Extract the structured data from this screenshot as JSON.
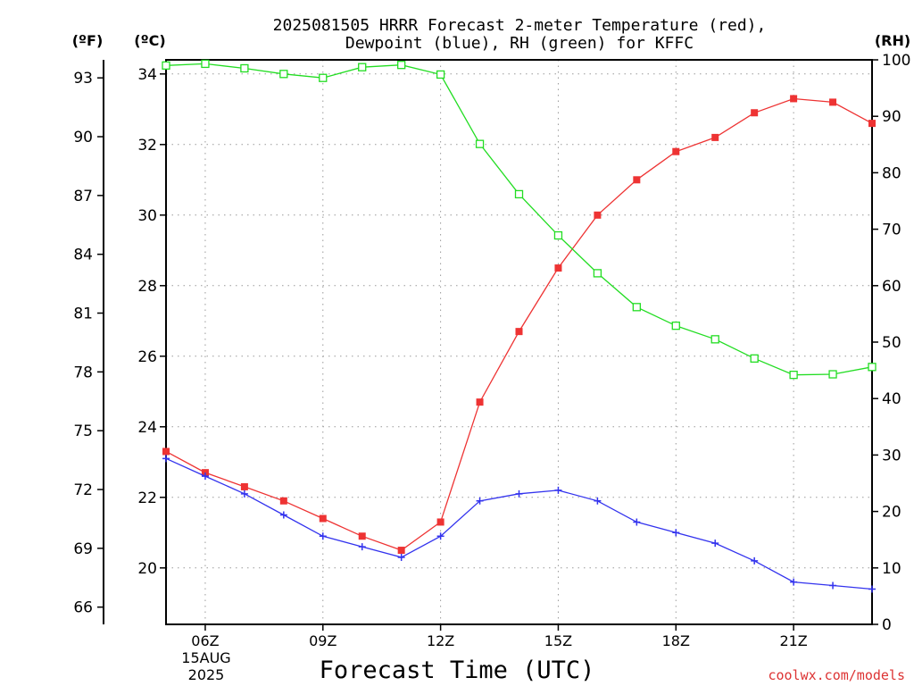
{
  "chart_data": {
    "type": "line",
    "title": "2025081505 HRRR Forecast 2-meter Temperature (red),",
    "subtitle": "Dewpoint (blue), RH (green) for KFFC",
    "xlabel": "Forecast Time (UTC)",
    "credit": "coolwx.com/models",
    "date_label_line1": "15AUG",
    "date_label_line2": "2025",
    "left_unit_f": "(ºF)",
    "left_unit_c": "(ºC)",
    "right_unit": "(RH)",
    "x": [
      5,
      6,
      7,
      8,
      9,
      10,
      11,
      12,
      13,
      14,
      15,
      16,
      17,
      18,
      19,
      20,
      21,
      22,
      23
    ],
    "xlim": [
      5,
      23
    ],
    "x_tick_values": [
      6,
      9,
      12,
      15,
      18,
      21
    ],
    "x_tick_labels": [
      "06Z",
      "09Z",
      "12Z",
      "15Z",
      "18Z",
      "21Z"
    ],
    "ylim_c": [
      18.4,
      34.4
    ],
    "y_ticks_c": [
      "20",
      "22",
      "24",
      "26",
      "28",
      "30",
      "32",
      "34"
    ],
    "y_ticks_f": [
      "66",
      "69",
      "72",
      "75",
      "78",
      "81",
      "84",
      "87",
      "90",
      "93"
    ],
    "ylim_rh": [
      0,
      100
    ],
    "y_ticks_rh": [
      "0",
      "10",
      "20",
      "30",
      "40",
      "50",
      "60",
      "70",
      "80",
      "90",
      "100"
    ],
    "grid": true,
    "series": [
      {
        "name": "Temperature",
        "axis": "celsius",
        "color": "#ee3333",
        "marker": "filled-square",
        "values": [
          23.3,
          22.7,
          22.3,
          21.9,
          21.4,
          20.9,
          20.5,
          21.3,
          24.7,
          26.7,
          28.5,
          30.0,
          31.0,
          31.8,
          32.2,
          32.9,
          33.3,
          33.2,
          32.6
        ]
      },
      {
        "name": "Dewpoint",
        "axis": "celsius",
        "color": "#3333ee",
        "marker": "plus",
        "values": [
          23.1,
          22.6,
          22.1,
          21.5,
          20.9,
          20.6,
          20.3,
          20.9,
          21.9,
          22.1,
          22.2,
          21.9,
          21.3,
          21.0,
          20.7,
          20.2,
          19.6,
          19.5,
          19.4
        ]
      },
      {
        "name": "RH",
        "axis": "rh",
        "color": "#22dd22",
        "marker": "open-square",
        "values": [
          99,
          99.3,
          98.5,
          97.5,
          96.8,
          98.7,
          99.1,
          97.4,
          85.1,
          76.2,
          68.9,
          62.2,
          56.2,
          52.9,
          50.5,
          47.1,
          44.2,
          44.3,
          45.6
        ]
      }
    ]
  }
}
